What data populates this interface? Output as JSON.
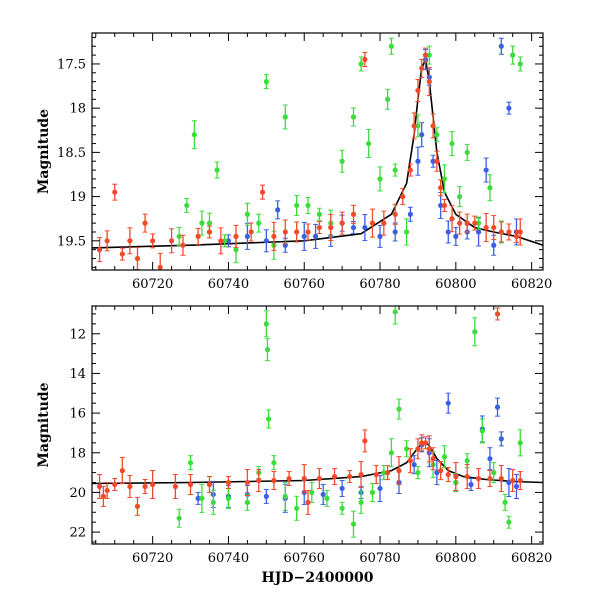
{
  "chart_data": [
    {
      "type": "scatter",
      "panel": "top",
      "title": "",
      "xlabel": "",
      "ylabel": "Magnitude",
      "xlim": [
        60704,
        60823
      ],
      "ylim": [
        19.83,
        17.15
      ],
      "y_inverted": true,
      "xticks": [
        60720,
        60740,
        60760,
        60780,
        60800,
        60820
      ],
      "xtick_labels": [
        "60720",
        "60740",
        "60760",
        "60780",
        "60800",
        "60820"
      ],
      "yticks": [
        17.5,
        18,
        18.5,
        19,
        19.5
      ],
      "ytick_labels": [
        "17.5",
        "18",
        "18.5",
        "19",
        "19.5"
      ],
      "grid": false,
      "series": [
        {
          "color": "#3a5fe6",
          "points": [
            [
              60740,
              19.5
            ],
            [
              60745,
              19.45
            ],
            [
              60750,
              19.5
            ],
            [
              60753,
              19.15
            ],
            [
              60755,
              19.55
            ],
            [
              60760,
              19.45
            ],
            [
              60763,
              19.45
            ],
            [
              60767,
              19.45
            ],
            [
              60770,
              19.3
            ],
            [
              60773,
              19.35
            ],
            [
              60776,
              19.35
            ],
            [
              60780,
              19.45
            ],
            [
              60784,
              19.4
            ],
            [
              60788,
              19.2
            ],
            [
              60790,
              18.6
            ],
            [
              60791,
              18.3
            ],
            [
              60792,
              17.45
            ],
            [
              60793,
              17.65
            ],
            [
              60794,
              18.6
            ],
            [
              60796,
              19.1
            ],
            [
              60798,
              19.4
            ],
            [
              60800,
              19.45
            ],
            [
              60803,
              19.4
            ],
            [
              60806,
              19.4
            ],
            [
              60808,
              18.7
            ],
            [
              60810,
              19.55
            ],
            [
              60812,
              17.3
            ],
            [
              60814,
              18.0
            ],
            [
              60816,
              19.4
            ]
          ]
        },
        {
          "color": "#3ddc3d",
          "points": [
            [
              60727,
              19.45
            ],
            [
              60729,
              19.1
            ],
            [
              60731,
              18.3
            ],
            [
              60733,
              19.3
            ],
            [
              60735,
              19.3
            ],
            [
              60737,
              18.7
            ],
            [
              60739,
              19.5
            ],
            [
              60742,
              19.6
            ],
            [
              60745,
              19.2
            ],
            [
              60748,
              19.3
            ],
            [
              60750,
              17.7
            ],
            [
              60752,
              19.55
            ],
            [
              60755,
              18.1
            ],
            [
              60758,
              19.1
            ],
            [
              60761,
              19.1
            ],
            [
              60764,
              19.2
            ],
            [
              60767,
              19.3
            ],
            [
              60770,
              18.6
            ],
            [
              60773,
              18.1
            ],
            [
              60775,
              17.5
            ],
            [
              60777,
              18.4
            ],
            [
              60780,
              18.8
            ],
            [
              60782,
              17.9
            ],
            [
              60783,
              17.3
            ],
            [
              60784,
              18.7
            ],
            [
              60787,
              19.4
            ],
            [
              60790,
              18.2
            ],
            [
              60793,
              17.4
            ],
            [
              60795,
              18.3
            ],
            [
              60797,
              18.8
            ],
            [
              60799,
              18.4
            ],
            [
              60801,
              19.0
            ],
            [
              60803,
              18.5
            ],
            [
              60806,
              19.3
            ],
            [
              60809,
              18.9
            ],
            [
              60812,
              19.4
            ],
            [
              60815,
              17.4
            ],
            [
              60817,
              17.5
            ]
          ]
        },
        {
          "color": "#f04a2a",
          "points": [
            [
              60706,
              19.6
            ],
            [
              60708,
              19.5
            ],
            [
              60710,
              18.95
            ],
            [
              60712,
              19.65
            ],
            [
              60714,
              19.5
            ],
            [
              60716,
              19.7
            ],
            [
              60718,
              19.3
            ],
            [
              60720,
              19.5
            ],
            [
              60722,
              19.8
            ],
            [
              60725,
              19.5
            ],
            [
              60728,
              19.55
            ],
            [
              60732,
              19.45
            ],
            [
              60735,
              19.4
            ],
            [
              60738,
              19.5
            ],
            [
              60742,
              19.45
            ],
            [
              60746,
              19.4
            ],
            [
              60749,
              18.95
            ],
            [
              60752,
              19.45
            ],
            [
              60755,
              19.4
            ],
            [
              60758,
              19.4
            ],
            [
              60761,
              19.4
            ],
            [
              60764,
              19.35
            ],
            [
              60767,
              19.35
            ],
            [
              60770,
              19.3
            ],
            [
              60773,
              19.2
            ],
            [
              60776,
              17.45
            ],
            [
              60778,
              19.3
            ],
            [
              60781,
              19.3
            ],
            [
              60784,
              19.2
            ],
            [
              60786,
              19.0
            ],
            [
              60788,
              18.7
            ],
            [
              60789,
              18.2
            ],
            [
              60790,
              17.8
            ],
            [
              60791,
              17.55
            ],
            [
              60792,
              17.4
            ],
            [
              60793,
              17.7
            ],
            [
              60794,
              18.2
            ],
            [
              60795,
              18.6
            ],
            [
              60796,
              18.9
            ],
            [
              60797,
              19.1
            ],
            [
              60799,
              19.25
            ],
            [
              60801,
              19.3
            ],
            [
              60803,
              19.3
            ],
            [
              60805,
              19.3
            ],
            [
              60808,
              19.35
            ],
            [
              60810,
              19.35
            ],
            [
              60812,
              19.4
            ],
            [
              60814,
              19.4
            ],
            [
              60816,
              19.45
            ],
            [
              60817,
              19.4
            ]
          ]
        }
      ],
      "model_curve": [
        [
          60704,
          19.58
        ],
        [
          60730,
          19.55
        ],
        [
          60760,
          19.5
        ],
        [
          60775,
          19.42
        ],
        [
          60783,
          19.2
        ],
        [
          60787,
          18.85
        ],
        [
          60789,
          18.3
        ],
        [
          60790,
          17.9
        ],
        [
          60791,
          17.55
        ],
        [
          60792,
          17.45
        ],
        [
          60793,
          17.7
        ],
        [
          60794,
          18.1
        ],
        [
          60795,
          18.5
        ],
        [
          60797,
          18.95
        ],
        [
          60800,
          19.2
        ],
        [
          60805,
          19.35
        ],
        [
          60810,
          19.4
        ],
        [
          60816,
          19.45
        ],
        [
          60823,
          19.55
        ]
      ]
    },
    {
      "type": "scatter",
      "panel": "bottom",
      "title": "",
      "xlabel": "HJD−2400000",
      "ylabel": "Magnitude",
      "xlim": [
        60704,
        60823
      ],
      "ylim": [
        22.6,
        10.6
      ],
      "y_inverted": true,
      "xticks": [
        60720,
        60740,
        60760,
        60780,
        60800,
        60820
      ],
      "xtick_labels": [
        "60720",
        "60740",
        "60760",
        "60780",
        "60800",
        "60820"
      ],
      "yticks": [
        12,
        14,
        16,
        18,
        20,
        22
      ],
      "ytick_labels": [
        "12",
        "14",
        "16",
        "18",
        "20",
        "22"
      ],
      "grid": false,
      "series": [
        {
          "color": "#3a5fe6",
          "points": [
            [
              60732,
              20.3
            ],
            [
              60736,
              20.1
            ],
            [
              60740,
              20.2
            ],
            [
              60745,
              20.1
            ],
            [
              60750,
              20.2
            ],
            [
              60755,
              20.3
            ],
            [
              60760,
              20.0
            ],
            [
              60765,
              20.1
            ],
            [
              60770,
              19.8
            ],
            [
              60775,
              20.0
            ],
            [
              60780,
              19.8
            ],
            [
              60785,
              19.5
            ],
            [
              60789,
              18.6
            ],
            [
              60791,
              17.6
            ],
            [
              60793,
              18.0
            ],
            [
              60795,
              19.0
            ],
            [
              60798,
              15.5
            ],
            [
              60800,
              19.5
            ],
            [
              60804,
              19.6
            ],
            [
              60807,
              16.8
            ],
            [
              60809,
              18.3
            ],
            [
              60811,
              15.7
            ],
            [
              60812,
              17.3
            ],
            [
              60814,
              19.5
            ],
            [
              60816,
              19.7
            ]
          ]
        },
        {
          "color": "#3ddc3d",
          "points": [
            [
              60727,
              21.3
            ],
            [
              60730,
              18.5
            ],
            [
              60733,
              20.3
            ],
            [
              60736,
              20.5
            ],
            [
              60740,
              20.3
            ],
            [
              60745,
              20.5
            ],
            [
              60748,
              19.0
            ],
            [
              60750,
              11.5
            ],
            [
              60750.3,
              12.8
            ],
            [
              60750.6,
              16.3
            ],
            [
              60752,
              18.5
            ],
            [
              60755,
              20.2
            ],
            [
              60758,
              20.8
            ],
            [
              60762,
              20.0
            ],
            [
              60766,
              20.3
            ],
            [
              60770,
              20.8
            ],
            [
              60773,
              21.6
            ],
            [
              60775,
              20.5
            ],
            [
              60778,
              20.0
            ],
            [
              60781,
              19.0
            ],
            [
              60783,
              18.0
            ],
            [
              60784,
              10.9
            ],
            [
              60785,
              15.8
            ],
            [
              60787,
              17.8
            ],
            [
              60790,
              19.0
            ],
            [
              60794,
              18.6
            ],
            [
              60797,
              18.2
            ],
            [
              60800,
              19.5
            ],
            [
              60803,
              18.4
            ],
            [
              60805,
              11.9
            ],
            [
              60807,
              16.9
            ],
            [
              60810,
              19.0
            ],
            [
              60813,
              20.5
            ],
            [
              60814,
              21.5
            ],
            [
              60817,
              17.5
            ]
          ]
        },
        {
          "color": "#f04a2a",
          "points": [
            [
              60706,
              19.7
            ],
            [
              60707,
              20.2
            ],
            [
              60708,
              19.9
            ],
            [
              60710,
              19.6
            ],
            [
              60712,
              18.9
            ],
            [
              60714,
              19.7
            ],
            [
              60716,
              20.7
            ],
            [
              60718,
              19.7
            ],
            [
              60720,
              19.6
            ],
            [
              60726,
              19.7
            ],
            [
              60730,
              19.6
            ],
            [
              60735,
              19.6
            ],
            [
              60740,
              19.5
            ],
            [
              60745,
              19.5
            ],
            [
              60748,
              19.4
            ],
            [
              60752,
              19.4
            ],
            [
              60756,
              19.3
            ],
            [
              60760,
              19.3
            ],
            [
              60761,
              20.5
            ],
            [
              60764,
              19.3
            ],
            [
              60768,
              19.2
            ],
            [
              60772,
              19.2
            ],
            [
              60775,
              19.1
            ],
            [
              60776,
              17.4
            ],
            [
              60779,
              19.1
            ],
            [
              60782,
              19.0
            ],
            [
              60785,
              18.9
            ],
            [
              60788,
              18.4
            ],
            [
              60790,
              17.8
            ],
            [
              60791,
              17.5
            ],
            [
              60792,
              17.5
            ],
            [
              60793,
              17.8
            ],
            [
              60794,
              18.3
            ],
            [
              60796,
              18.9
            ],
            [
              60798,
              19.1
            ],
            [
              60800,
              19.2
            ],
            [
              60803,
              19.2
            ],
            [
              60806,
              19.3
            ],
            [
              60809,
              19.3
            ],
            [
              60811,
              11.0
            ],
            [
              60812,
              19.3
            ],
            [
              60815,
              19.4
            ],
            [
              60817,
              19.4
            ]
          ]
        }
      ],
      "model_curve": [
        [
          60704,
          19.55
        ],
        [
          60730,
          19.5
        ],
        [
          60760,
          19.4
        ],
        [
          60775,
          19.2
        ],
        [
          60783,
          18.9
        ],
        [
          60787,
          18.5
        ],
        [
          60789,
          18.0
        ],
        [
          60791,
          17.55
        ],
        [
          60792,
          17.45
        ],
        [
          60793,
          17.65
        ],
        [
          60795,
          18.3
        ],
        [
          60798,
          18.9
        ],
        [
          60802,
          19.2
        ],
        [
          60808,
          19.35
        ],
        [
          60815,
          19.45
        ],
        [
          60823,
          19.5
        ]
      ]
    }
  ]
}
